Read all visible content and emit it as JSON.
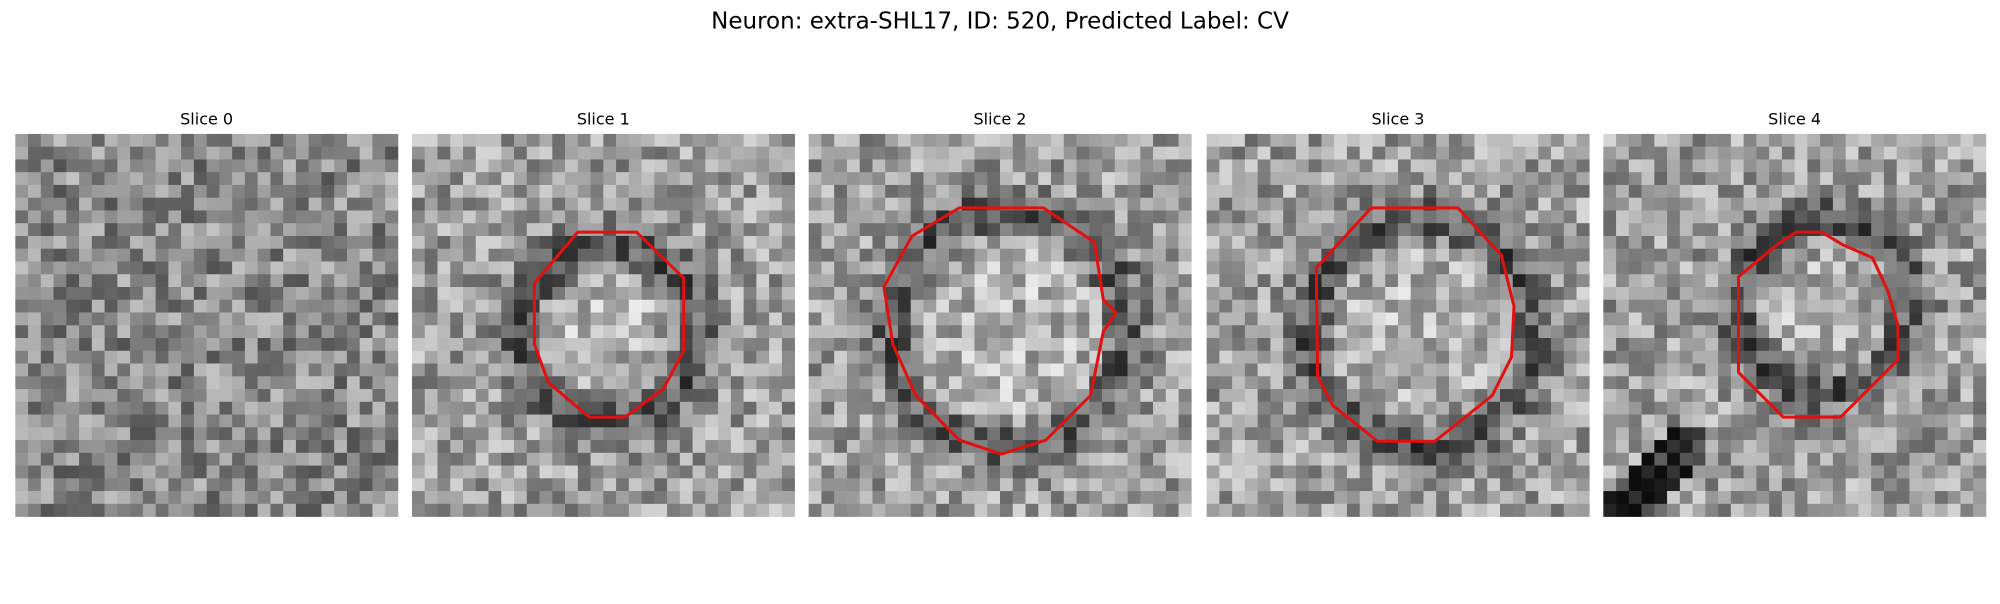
{
  "title": "Neuron: extra-SHL17, ID: 520, Predicted Label: CV",
  "panels": [
    {
      "title": "Slice 0"
    },
    {
      "title": "Slice 1"
    },
    {
      "title": "Slice 2"
    },
    {
      "title": "Slice 3"
    },
    {
      "title": "Slice 4"
    }
  ]
}
